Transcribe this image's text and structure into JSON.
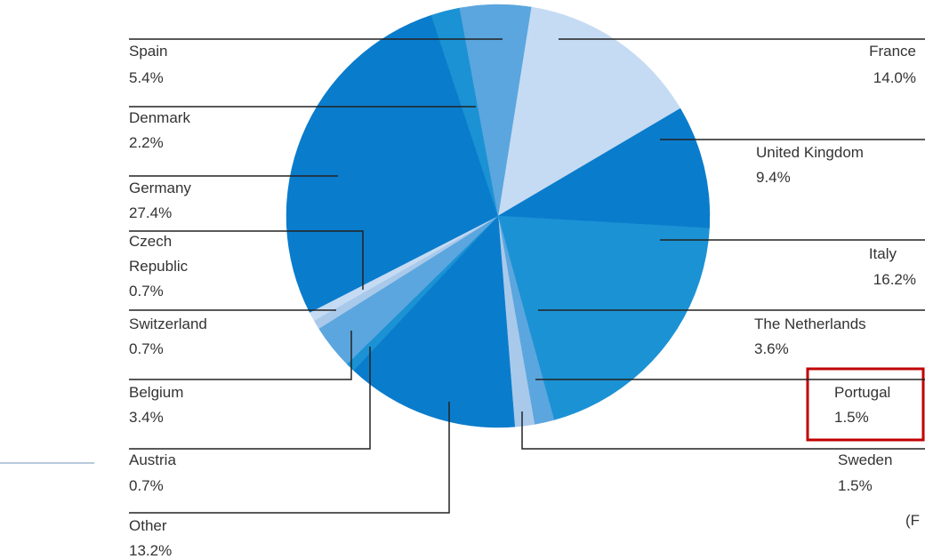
{
  "chart_data": {
    "type": "pie",
    "categories": [
      "France",
      "United Kingdom",
      "Italy",
      "The Netherlands",
      "Portugal",
      "Sweden",
      "Other",
      "Austria",
      "Belgium",
      "Switzerland",
      "Czech Republic",
      "Germany",
      "Denmark",
      "Spain"
    ],
    "values": [
      14.0,
      9.4,
      16.2,
      3.6,
      1.5,
      1.5,
      13.2,
      0.7,
      3.4,
      0.7,
      0.7,
      27.4,
      2.2,
      5.4
    ],
    "value_labels": [
      "14.0%",
      "9.4%",
      "16.2%",
      "3.6%",
      "1.5%",
      "1.5%",
      "13.2%",
      "0.7%",
      "3.4%",
      "0.7%",
      "0.7%",
      "27.4%",
      "2.2%",
      "5.4%"
    ],
    "colors": [
      "#c5dbf3",
      "#0a7ccc",
      "#1b92d4",
      "#1b92d4",
      "#5ba6de",
      "#a9c9eb",
      "#0a7ccc",
      "#1b92d4",
      "#5ba6de",
      "#a9c9eb",
      "#c5dbf3",
      "#0a7ccc",
      "#1b92d4",
      "#5ba6de"
    ],
    "annotation": "(F"
  }
}
